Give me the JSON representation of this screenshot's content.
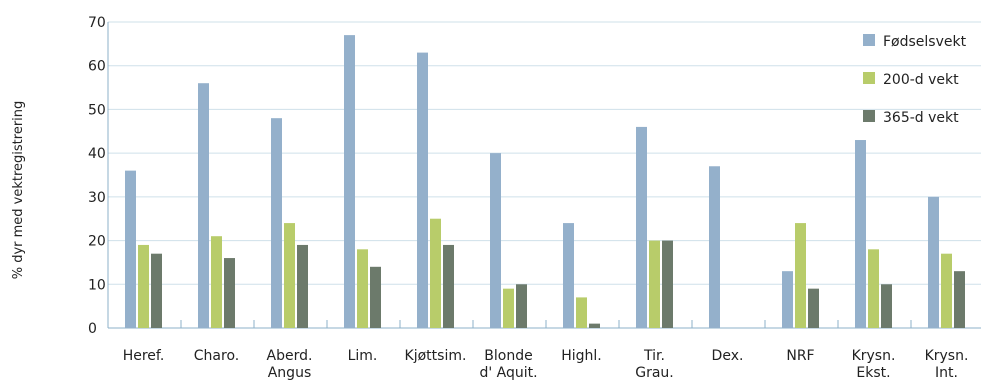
{
  "chart_data": {
    "type": "bar",
    "title": "",
    "xlabel": "",
    "ylabel": "% dyr med vektregistrering",
    "ylim": [
      0,
      70
    ],
    "yticks": [
      0,
      10,
      20,
      30,
      40,
      50,
      60,
      70
    ],
    "grid": true,
    "legend_position": "top-right",
    "categories": [
      [
        "Heref."
      ],
      [
        "Charo."
      ],
      [
        "Aberd.",
        "Angus"
      ],
      [
        "Lim."
      ],
      [
        "Kjøttsim."
      ],
      [
        "Blonde",
        "d' Aquit."
      ],
      [
        "Highl."
      ],
      [
        "Tir.",
        "Grau."
      ],
      [
        "Dex."
      ],
      [
        "NRF"
      ],
      [
        "Krysn.",
        "Ekst."
      ],
      [
        "Krysn.",
        "Int."
      ]
    ],
    "series": [
      {
        "name": "Fødselsvekt",
        "color": "#94b0cb",
        "values": [
          36,
          56,
          48,
          67,
          63,
          40,
          24,
          46,
          37,
          13,
          43,
          30
        ]
      },
      {
        "name": "200-d vekt",
        "color": "#b8cc6a",
        "values": [
          19,
          21,
          24,
          18,
          25,
          9,
          7,
          20,
          0,
          24,
          18,
          17
        ]
      },
      {
        "name": "365-d vekt",
        "color": "#6c7a6b",
        "values": [
          17,
          16,
          19,
          14,
          19,
          10,
          1,
          20,
          0,
          9,
          10,
          13
        ]
      }
    ]
  }
}
